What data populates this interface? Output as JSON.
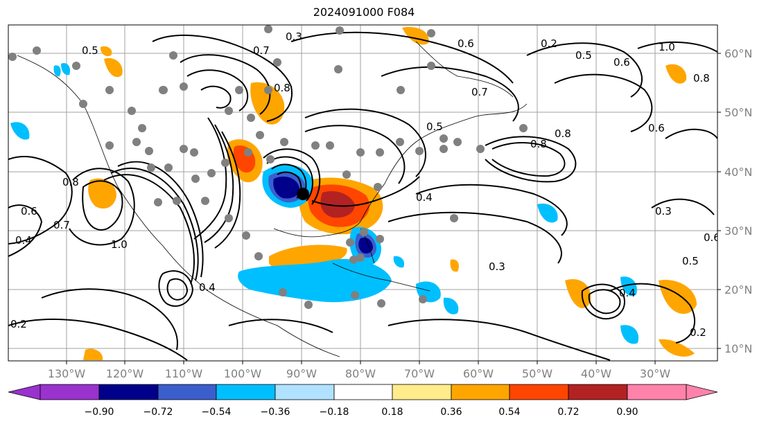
{
  "title": "2024091000 F084",
  "longitude_labels": [
    "130°W",
    "120°W",
    "110°W",
    "100°W",
    "90°W",
    "80°W",
    "70°W",
    "60°W",
    "50°W",
    "40°W",
    "30°W"
  ],
  "latitude_labels": [
    "60°N",
    "50°N",
    "40°N",
    "30°N",
    "20°N",
    "10°N"
  ],
  "colorbar": {
    "tick_labels": [
      "−0.90",
      "−0.72",
      "−0.54",
      "−0.36",
      "−0.18",
      "0.18",
      "0.36",
      "0.54",
      "0.72",
      "0.90"
    ],
    "colors": [
      "#9a32cd",
      "#00008b",
      "#3a5fcd",
      "#00bfff",
      "#b0e2ff",
      "#ffffff",
      "#ffec8b",
      "#ffa500",
      "#ff4500",
      "#b22222",
      "#ff82ab"
    ]
  },
  "contour_labels": [
    "0.2",
    "0.3",
    "0.4",
    "0.5",
    "0.6",
    "0.7",
    "0.8",
    "1.0",
    "0.4",
    "0.6",
    "0.7",
    "0.8",
    "0.3",
    "0.5",
    "0.6",
    "0.2",
    "1.0",
    "0.8",
    "0.6",
    "0.8",
    "0.4",
    "0.3",
    "0.5",
    "0.6",
    "0.4",
    "0.2",
    "0.5",
    "0.7",
    "0.8"
  ],
  "markers": {
    "center_color": "#000000",
    "dot_color": "#808080"
  }
}
